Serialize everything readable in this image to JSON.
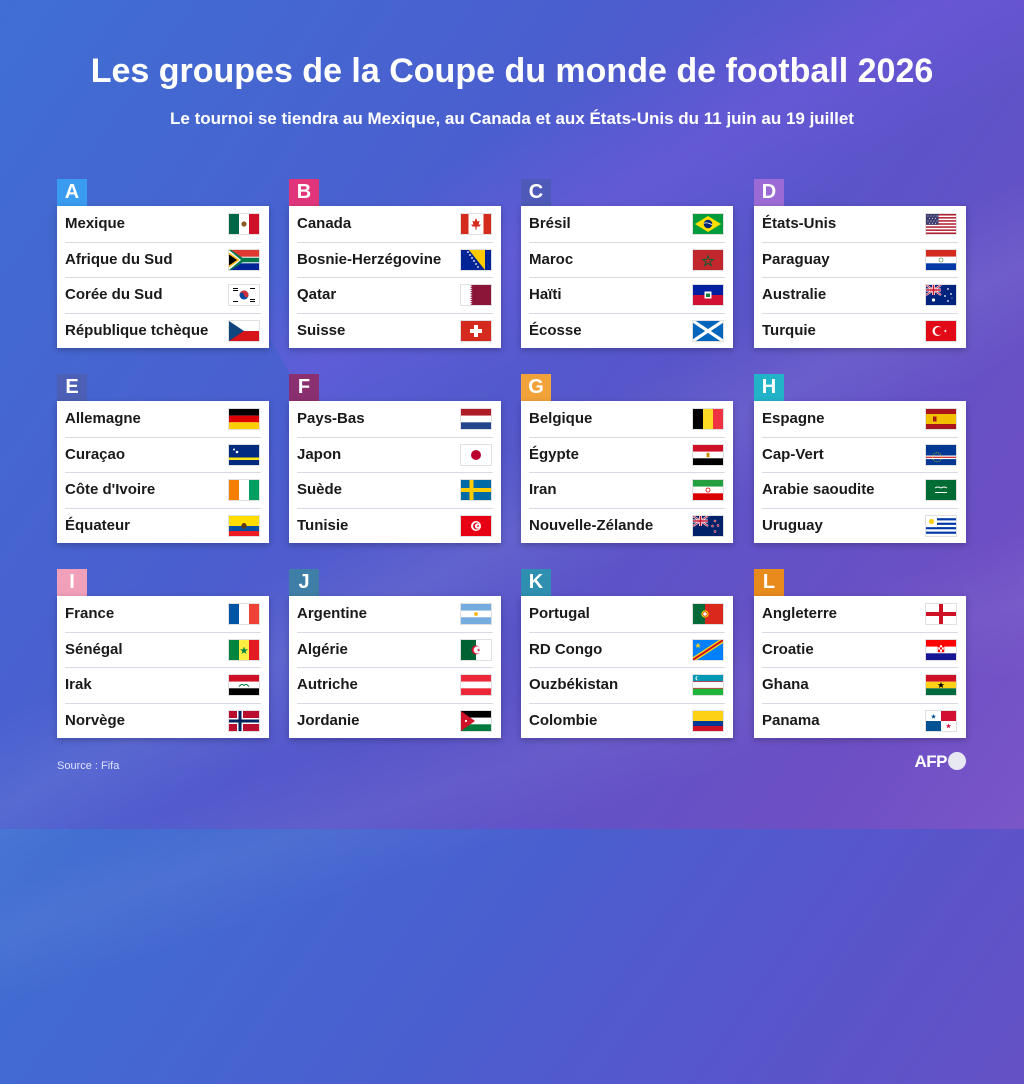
{
  "title": "Les groupes de la Coupe du monde de football 2026",
  "subtitle": "Le tournoi se tiendra au Mexique, au Canada et aux États-Unis du 11 juin au 19 juillet",
  "source": "Source : Fifa",
  "logo": "AFP",
  "groups": [
    {
      "letter": "A",
      "color": "#3a9cf0",
      "teams": [
        {
          "name": "Mexique",
          "flag": "mexico"
        },
        {
          "name": "Afrique du Sud",
          "flag": "south-africa"
        },
        {
          "name": "Corée du Sud",
          "flag": "south-korea"
        },
        {
          "name": "République tchèque",
          "flag": "czech-republic"
        }
      ]
    },
    {
      "letter": "B",
      "color": "#e0357a",
      "teams": [
        {
          "name": "Canada",
          "flag": "canada"
        },
        {
          "name": "Bosnie-Herzégovine",
          "flag": "bosnia"
        },
        {
          "name": "Qatar",
          "flag": "qatar"
        },
        {
          "name": "Suisse",
          "flag": "switzerland"
        }
      ]
    },
    {
      "letter": "C",
      "color": "#4d5ab8",
      "teams": [
        {
          "name": "Brésil",
          "flag": "brazil"
        },
        {
          "name": "Maroc",
          "flag": "morocco"
        },
        {
          "name": "Haïti",
          "flag": "haiti"
        },
        {
          "name": "Écosse",
          "flag": "scotland"
        }
      ]
    },
    {
      "letter": "D",
      "color": "#9b6ad4",
      "teams": [
        {
          "name": "États-Unis",
          "flag": "usa"
        },
        {
          "name": "Paraguay",
          "flag": "paraguay"
        },
        {
          "name": "Australie",
          "flag": "australia"
        },
        {
          "name": "Turquie",
          "flag": "turkey"
        }
      ]
    },
    {
      "letter": "E",
      "color": "#4c5fb6",
      "teams": [
        {
          "name": "Allemagne",
          "flag": "germany"
        },
        {
          "name": "Curaçao",
          "flag": "curacao"
        },
        {
          "name": "Côte d'Ivoire",
          "flag": "ivory-coast"
        },
        {
          "name": "Équateur",
          "flag": "ecuador"
        }
      ]
    },
    {
      "letter": "F",
      "color": "#8a2f70",
      "teams": [
        {
          "name": "Pays-Bas",
          "flag": "netherlands"
        },
        {
          "name": "Japon",
          "flag": "japan"
        },
        {
          "name": "Suède",
          "flag": "sweden"
        },
        {
          "name": "Tunisie",
          "flag": "tunisia"
        }
      ]
    },
    {
      "letter": "G",
      "color": "#f2a23a",
      "teams": [
        {
          "name": "Belgique",
          "flag": "belgium"
        },
        {
          "name": "Égypte",
          "flag": "egypt"
        },
        {
          "name": "Iran",
          "flag": "iran"
        },
        {
          "name": "Nouvelle-Zélande",
          "flag": "new-zealand"
        }
      ]
    },
    {
      "letter": "H",
      "color": "#22b3c9",
      "teams": [
        {
          "name": "Espagne",
          "flag": "spain"
        },
        {
          "name": "Cap-Vert",
          "flag": "cape-verde"
        },
        {
          "name": "Arabie saoudite",
          "flag": "saudi-arabia"
        },
        {
          "name": "Uruguay",
          "flag": "uruguay"
        }
      ]
    },
    {
      "letter": "I",
      "color": "#f0a0b8",
      "teams": [
        {
          "name": "France",
          "flag": "france"
        },
        {
          "name": "Sénégal",
          "flag": "senegal"
        },
        {
          "name": "Irak",
          "flag": "iraq"
        },
        {
          "name": "Norvège",
          "flag": "norway"
        }
      ]
    },
    {
      "letter": "J",
      "color": "#3f7ea6",
      "teams": [
        {
          "name": "Argentine",
          "flag": "argentina"
        },
        {
          "name": "Algérie",
          "flag": "algeria"
        },
        {
          "name": "Autriche",
          "flag": "austria"
        },
        {
          "name": "Jordanie",
          "flag": "jordan"
        }
      ]
    },
    {
      "letter": "K",
      "color": "#2f8fb0",
      "teams": [
        {
          "name": "Portugal",
          "flag": "portugal"
        },
        {
          "name": "RD Congo",
          "flag": "dr-congo"
        },
        {
          "name": "Ouzbékistan",
          "flag": "uzbekistan"
        },
        {
          "name": "Colombie",
          "flag": "colombia"
        }
      ]
    },
    {
      "letter": "L",
      "color": "#e98a1d",
      "teams": [
        {
          "name": "Angleterre",
          "flag": "england"
        },
        {
          "name": "Croatie",
          "flag": "croatia"
        },
        {
          "name": "Ghana",
          "flag": "ghana"
        },
        {
          "name": "Panama",
          "flag": "panama"
        }
      ]
    }
  ]
}
